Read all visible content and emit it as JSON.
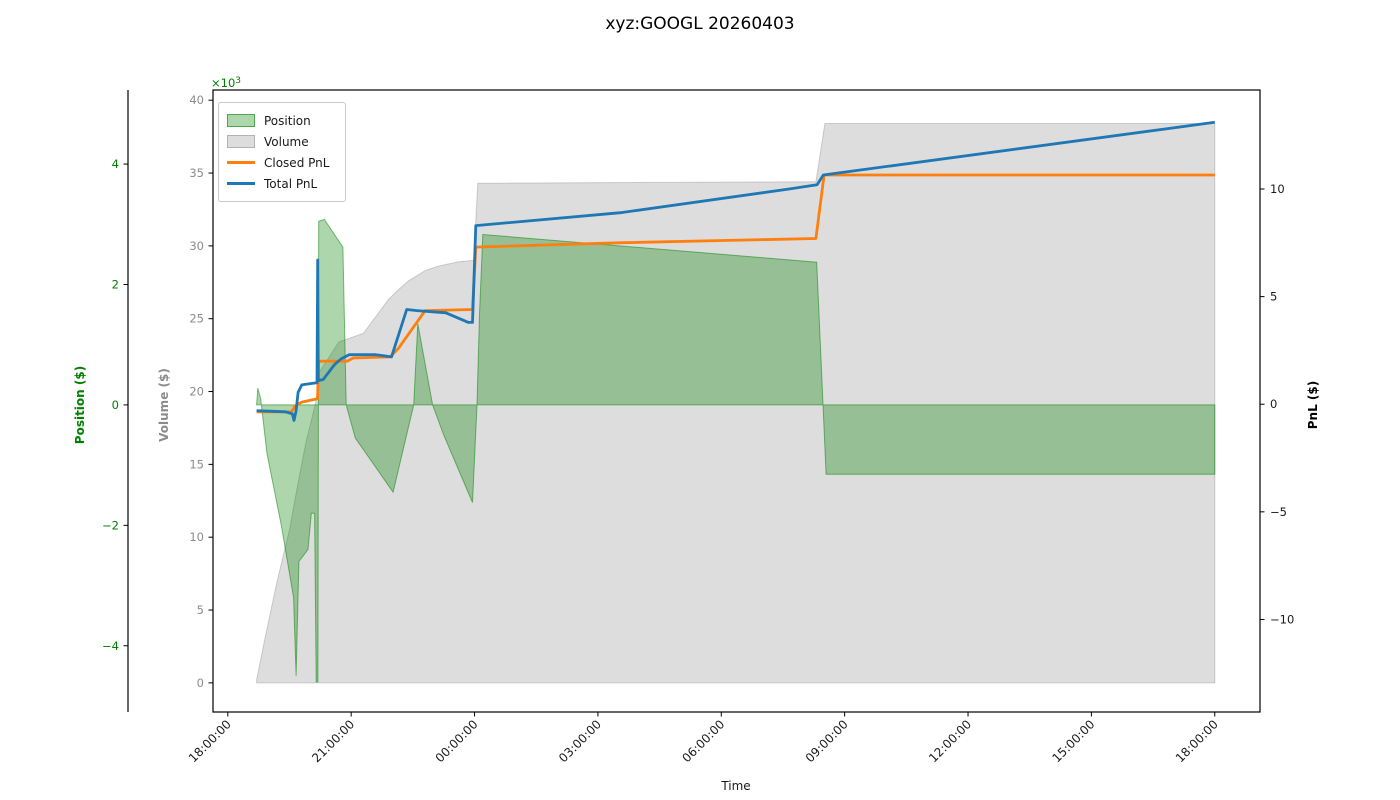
{
  "title": "xyz:GOOGL 20260403",
  "axes": {
    "x": {
      "label": "Time",
      "range_hours": [
        -0.36,
        25.1
      ],
      "tick_hours": [
        0,
        3,
        6,
        9,
        12,
        15,
        18,
        21,
        24
      ],
      "tick_labels": [
        "18:00:00",
        "21:00:00",
        "00:00:00",
        "03:00:00",
        "06:00:00",
        "09:00:00",
        "12:00:00",
        "15:00:00",
        "18:00:00"
      ],
      "color": "#1a1a1a"
    },
    "position": {
      "label": "Position ($)",
      "range": [
        -5.1,
        5.23
      ],
      "ticks": [
        -4,
        -2,
        0,
        2,
        4
      ],
      "color": "#008000"
    },
    "volume": {
      "label": "Volume ($)",
      "range": [
        -2,
        40.7
      ],
      "ticks": [
        0,
        5,
        10,
        15,
        20,
        25,
        30,
        35,
        40
      ],
      "tick_unit_multiplier": 1000,
      "offset_base": "×10",
      "offset_exp": "3",
      "color": "#8c8c8c"
    },
    "pnl": {
      "label": "PnL ($)",
      "range": [
        -14.3,
        14.6
      ],
      "ticks": [
        -10,
        -5,
        0,
        5,
        10
      ],
      "color": "#1a1a1a"
    }
  },
  "legend": {
    "items": [
      {
        "label": "Position",
        "type": "patch",
        "fill": "rgba(0,128,0,0.32)",
        "edge": "rgba(0,128,0,0.55)"
      },
      {
        "label": "Volume",
        "type": "patch",
        "fill": "rgba(128,128,128,0.27)",
        "edge": "rgba(128,128,128,0.45)"
      },
      {
        "label": "Closed PnL",
        "type": "line",
        "color": "#ff7f0e"
      },
      {
        "label": "Total PnL",
        "type": "line",
        "color": "#1f77b4"
      }
    ]
  },
  "chart_data": {
    "type": "mixed",
    "x_unit": "hours from 18:00:00 (x tick labels are times of day)",
    "grid": false,
    "legend_position": "upper left",
    "series": [
      {
        "name": "Position",
        "plot": "area",
        "axis": "position",
        "unit": "$",
        "fill": "rgba(0,128,0,0.32)",
        "edge": "rgba(0,128,0,0.5)",
        "baseline": 0,
        "points": [
          [
            0.7,
            0
          ],
          [
            0.73,
            0.28
          ],
          [
            0.8,
            0.1
          ],
          [
            0.95,
            -0.8
          ],
          [
            1.3,
            -2.0
          ],
          [
            1.6,
            -3.2
          ],
          [
            1.66,
            -4.5
          ],
          [
            1.73,
            -2.6
          ],
          [
            1.95,
            -2.4
          ],
          [
            2.03,
            -1.8
          ],
          [
            2.11,
            -1.8
          ],
          [
            2.15,
            -4.6
          ],
          [
            2.19,
            -4.6
          ],
          [
            2.21,
            3.05
          ],
          [
            2.35,
            3.08
          ],
          [
            2.8,
            2.62
          ],
          [
            2.88,
            0.0
          ],
          [
            3.1,
            -0.55
          ],
          [
            4.02,
            -1.45
          ],
          [
            4.52,
            0.0
          ],
          [
            4.62,
            1.35
          ],
          [
            4.98,
            0.0
          ],
          [
            5.25,
            -0.5
          ],
          [
            5.95,
            -1.62
          ],
          [
            6.06,
            0.0
          ],
          [
            6.12,
            1.5
          ],
          [
            6.2,
            2.83
          ],
          [
            14.32,
            2.37
          ],
          [
            14.55,
            -1.15
          ],
          [
            24.0,
            -1.15
          ]
        ]
      },
      {
        "name": "Volume",
        "plot": "area",
        "axis": "volume",
        "unit": "$ thousands",
        "fill": "rgba(128,128,128,0.27)",
        "edge": "rgba(128,128,128,0.35)",
        "baseline": 0,
        "points": [
          [
            0.7,
            0.2
          ],
          [
            0.9,
            3.0
          ],
          [
            1.2,
            7.0
          ],
          [
            1.5,
            10.5
          ],
          [
            1.66,
            13.0
          ],
          [
            1.9,
            16.5
          ],
          [
            2.1,
            18.8
          ],
          [
            2.18,
            19.8
          ],
          [
            2.22,
            21.3
          ],
          [
            2.7,
            23.4
          ],
          [
            3.3,
            24.0
          ],
          [
            3.9,
            26.3
          ],
          [
            4.15,
            27.0
          ],
          [
            4.4,
            27.6
          ],
          [
            4.8,
            28.3
          ],
          [
            5.1,
            28.6
          ],
          [
            5.6,
            28.9
          ],
          [
            5.98,
            29.0
          ],
          [
            6.08,
            34.3
          ],
          [
            14.3,
            34.4
          ],
          [
            14.52,
            38.4
          ],
          [
            24.0,
            38.4
          ]
        ]
      },
      {
        "name": "Closed PnL",
        "plot": "line",
        "axis": "pnl",
        "unit": "$",
        "color": "#ff7f0e",
        "width": 2.8,
        "points": [
          [
            0.7,
            -0.35
          ],
          [
            1.55,
            -0.35
          ],
          [
            1.63,
            -0.1
          ],
          [
            1.7,
            0.0
          ],
          [
            1.8,
            0.1
          ],
          [
            2.18,
            0.25
          ],
          [
            2.21,
            2.0
          ],
          [
            2.9,
            2.0
          ],
          [
            3.05,
            2.15
          ],
          [
            3.95,
            2.2
          ],
          [
            4.15,
            2.6
          ],
          [
            4.8,
            4.35
          ],
          [
            5.95,
            4.4
          ],
          [
            6.03,
            7.3
          ],
          [
            9.5,
            7.5
          ],
          [
            14.3,
            7.7
          ],
          [
            14.5,
            10.65
          ],
          [
            24.0,
            10.65
          ]
        ]
      },
      {
        "name": "Total PnL",
        "plot": "line",
        "axis": "pnl",
        "unit": "$",
        "color": "#1f77b4",
        "width": 2.8,
        "points": [
          [
            0.7,
            -0.3
          ],
          [
            1.4,
            -0.35
          ],
          [
            1.57,
            -0.45
          ],
          [
            1.61,
            -0.75
          ],
          [
            1.66,
            -0.3
          ],
          [
            1.71,
            0.55
          ],
          [
            1.8,
            0.9
          ],
          [
            2.05,
            0.97
          ],
          [
            2.17,
            1.0
          ],
          [
            2.185,
            6.7
          ],
          [
            2.2,
            1.1
          ],
          [
            2.32,
            1.15
          ],
          [
            2.6,
            1.85
          ],
          [
            2.75,
            2.1
          ],
          [
            2.95,
            2.3
          ],
          [
            3.6,
            2.3
          ],
          [
            3.98,
            2.2
          ],
          [
            4.35,
            4.4
          ],
          [
            4.6,
            4.35
          ],
          [
            5.3,
            4.25
          ],
          [
            5.85,
            3.8
          ],
          [
            5.95,
            3.8
          ],
          [
            6.03,
            8.3
          ],
          [
            9.55,
            8.9
          ],
          [
            13.65,
            10.0
          ],
          [
            14.33,
            10.2
          ],
          [
            14.48,
            10.65
          ],
          [
            24.0,
            13.1
          ]
        ]
      }
    ]
  }
}
